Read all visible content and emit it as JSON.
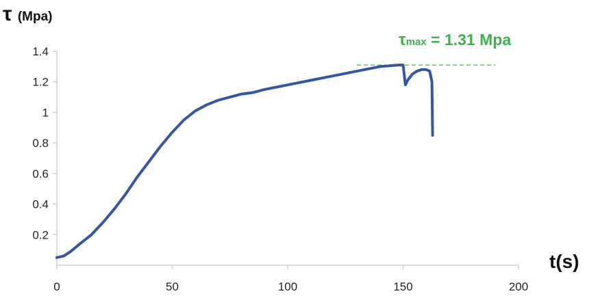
{
  "chart_data": {
    "type": "line",
    "xlabel": "t(s)",
    "ylabel": {
      "symbol": "τ",
      "unit": "(Mpa)"
    },
    "xlim": [
      0,
      200
    ],
    "ylim": [
      0,
      1.4
    ],
    "x_ticks": [
      "0",
      "50",
      "100",
      "150",
      "200"
    ],
    "y_ticks": [
      "0.2",
      "0.4",
      "0.6",
      "0.8",
      "1",
      "1.2",
      "1.4"
    ],
    "grid": false,
    "series": [
      {
        "color": "#3356a8",
        "points": [
          [
            0,
            0.05
          ],
          [
            3,
            0.06
          ],
          [
            6,
            0.09
          ],
          [
            10,
            0.14
          ],
          [
            15,
            0.2
          ],
          [
            20,
            0.28
          ],
          [
            25,
            0.37
          ],
          [
            30,
            0.47
          ],
          [
            35,
            0.58
          ],
          [
            40,
            0.68
          ],
          [
            45,
            0.78
          ],
          [
            50,
            0.87
          ],
          [
            55,
            0.95
          ],
          [
            60,
            1.01
          ],
          [
            65,
            1.05
          ],
          [
            70,
            1.08
          ],
          [
            75,
            1.1
          ],
          [
            80,
            1.12
          ],
          [
            85,
            1.13
          ],
          [
            90,
            1.15
          ],
          [
            100,
            1.18
          ],
          [
            110,
            1.21
          ],
          [
            120,
            1.24
          ],
          [
            130,
            1.27
          ],
          [
            140,
            1.3
          ],
          [
            148,
            1.31
          ],
          [
            150,
            1.31
          ],
          [
            151,
            1.18
          ],
          [
            152,
            1.21
          ],
          [
            154,
            1.25
          ],
          [
            156,
            1.27
          ],
          [
            158,
            1.28
          ],
          [
            160,
            1.28
          ],
          [
            161.5,
            1.27
          ],
          [
            162.5,
            1.2
          ],
          [
            162.8,
            0.85
          ]
        ]
      }
    ],
    "annotations": [
      {
        "type": "hline",
        "y": 1.31,
        "x_range": [
          130,
          190
        ],
        "style": "dashed",
        "color": "#3cb44b",
        "label_symbol": "τ",
        "label_sub": "max",
        "label_rest": " = 1.31 Mpa"
      }
    ]
  }
}
